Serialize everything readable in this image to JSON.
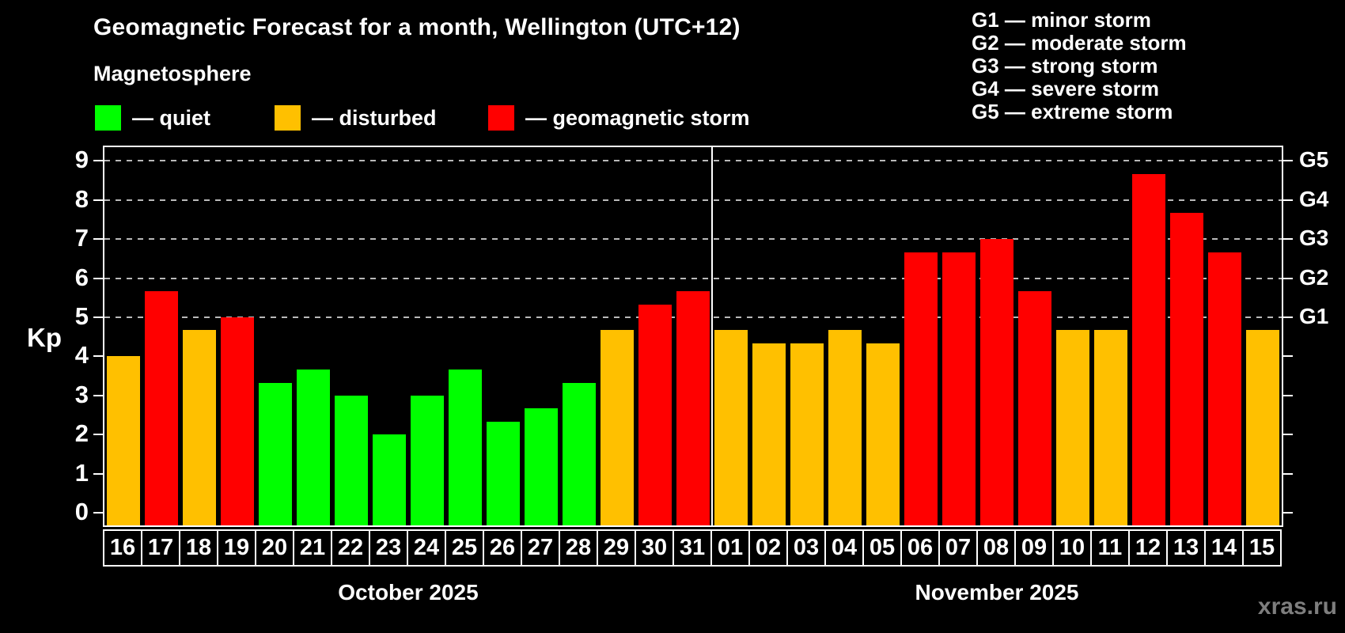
{
  "header": {
    "subtitle": "Magnetosphere",
    "series_legend": [
      {
        "key": "quiet",
        "label": "— quiet",
        "color": "#00ff00"
      },
      {
        "key": "disturbed",
        "label": "— disturbed",
        "color": "#ffc000"
      },
      {
        "key": "storm",
        "label": "— geomagnetic storm",
        "color": "#ff0000"
      }
    ],
    "storm_scale_legend": [
      "G1 — minor storm",
      "G2 — moderate storm",
      "G3 — strong storm",
      "G4 — severe storm",
      "G5 — extreme storm"
    ]
  },
  "chart_data": {
    "type": "bar",
    "title": "Geomagnetic Forecast for a month, Wellington (UTC+12)",
    "ylabel": "Kp",
    "ylim": [
      0,
      9
    ],
    "yticks": [
      0,
      1,
      2,
      3,
      4,
      5,
      6,
      7,
      8,
      9
    ],
    "gridlines": [
      5,
      6,
      7,
      8,
      9
    ],
    "grid_style": "dashed horizontal lines at storm levels only",
    "legend_position": "top",
    "right_axis": [
      {
        "value": 5,
        "label": "G1"
      },
      {
        "value": 6,
        "label": "G2"
      },
      {
        "value": 7,
        "label": "G3"
      },
      {
        "value": 8,
        "label": "G4"
      },
      {
        "value": 9,
        "label": "G5"
      }
    ],
    "colors": {
      "quiet": "#00ff00",
      "disturbed": "#ffc000",
      "storm": "#ff0000"
    },
    "months": [
      {
        "label": "October 2025",
        "days": [
          {
            "day": "16",
            "kp": 4.0,
            "state": "disturbed"
          },
          {
            "day": "17",
            "kp": 5.67,
            "state": "storm"
          },
          {
            "day": "18",
            "kp": 4.67,
            "state": "disturbed"
          },
          {
            "day": "19",
            "kp": 5.0,
            "state": "storm"
          },
          {
            "day": "20",
            "kp": 3.33,
            "state": "quiet"
          },
          {
            "day": "21",
            "kp": 3.67,
            "state": "quiet"
          },
          {
            "day": "22",
            "kp": 3.0,
            "state": "quiet"
          },
          {
            "day": "23",
            "kp": 2.0,
            "state": "quiet"
          },
          {
            "day": "24",
            "kp": 3.0,
            "state": "quiet"
          },
          {
            "day": "25",
            "kp": 3.67,
            "state": "quiet"
          },
          {
            "day": "26",
            "kp": 2.33,
            "state": "quiet"
          },
          {
            "day": "27",
            "kp": 2.67,
            "state": "quiet"
          },
          {
            "day": "28",
            "kp": 3.33,
            "state": "quiet"
          },
          {
            "day": "29",
            "kp": 4.67,
            "state": "disturbed"
          },
          {
            "day": "30",
            "kp": 5.33,
            "state": "storm"
          },
          {
            "day": "31",
            "kp": 5.67,
            "state": "storm"
          }
        ]
      },
      {
        "label": "November 2025",
        "days": [
          {
            "day": "01",
            "kp": 4.67,
            "state": "disturbed"
          },
          {
            "day": "02",
            "kp": 4.33,
            "state": "disturbed"
          },
          {
            "day": "03",
            "kp": 4.33,
            "state": "disturbed"
          },
          {
            "day": "04",
            "kp": 4.67,
            "state": "disturbed"
          },
          {
            "day": "05",
            "kp": 4.33,
            "state": "disturbed"
          },
          {
            "day": "06",
            "kp": 6.67,
            "state": "storm"
          },
          {
            "day": "07",
            "kp": 6.67,
            "state": "storm"
          },
          {
            "day": "08",
            "kp": 7.0,
            "state": "storm"
          },
          {
            "day": "09",
            "kp": 5.67,
            "state": "storm"
          },
          {
            "day": "10",
            "kp": 4.67,
            "state": "disturbed"
          },
          {
            "day": "11",
            "kp": 4.67,
            "state": "disturbed"
          },
          {
            "day": "12",
            "kp": 8.67,
            "state": "storm"
          },
          {
            "day": "13",
            "kp": 7.67,
            "state": "storm"
          },
          {
            "day": "14",
            "kp": 6.67,
            "state": "storm"
          },
          {
            "day": "15",
            "kp": 4.67,
            "state": "disturbed"
          }
        ]
      }
    ]
  },
  "watermark": "xras.ru"
}
